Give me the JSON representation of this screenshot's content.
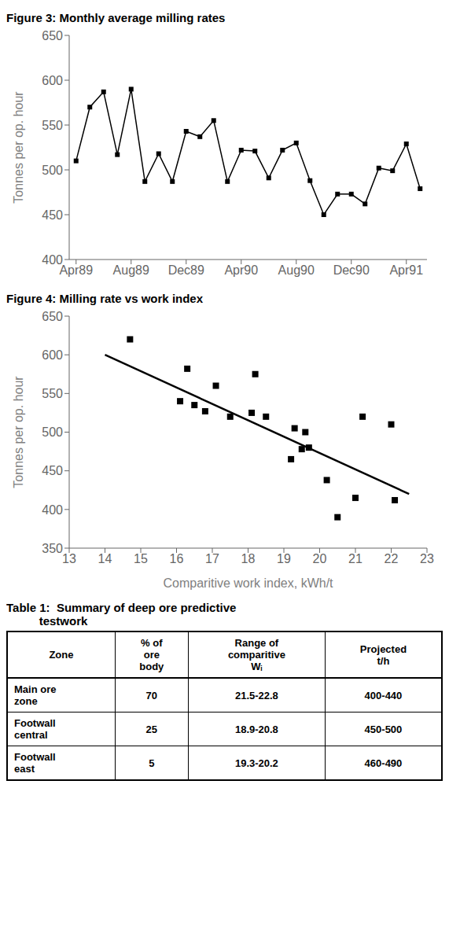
{
  "chart_data": [
    {
      "type": "line",
      "title": "Figure 3: Monthly average milling rates",
      "x": [
        0,
        1,
        2,
        3,
        4,
        5,
        6,
        7,
        8,
        9,
        10,
        11,
        12,
        13,
        14,
        15,
        16,
        17,
        18,
        19,
        20,
        21,
        22,
        23,
        24,
        25
      ],
      "values": [
        510,
        570,
        587,
        517,
        590,
        487,
        518,
        487,
        543,
        537,
        555,
        487,
        522,
        521,
        491,
        522,
        530,
        488,
        450,
        473,
        473,
        462,
        502,
        499,
        529,
        479
      ],
      "xlim": [
        -0.5,
        25.5
      ],
      "xticks": [
        {
          "value": 0,
          "label": "Apr89"
        },
        {
          "value": 4,
          "label": "Aug89"
        },
        {
          "value": 8,
          "label": "Dec89"
        },
        {
          "value": 12,
          "label": "Apr90"
        },
        {
          "value": 16,
          "label": "Aug90"
        },
        {
          "value": 20,
          "label": "Dec90"
        },
        {
          "value": 24,
          "label": "Apr91"
        }
      ],
      "ylim": [
        400,
        650
      ],
      "yticks": [
        400,
        450,
        500,
        550,
        600,
        650
      ],
      "ylabel": "Tonnes per op. hour",
      "color": "#000000",
      "marker": "square",
      "grid": false
    },
    {
      "type": "scatter",
      "title": "Figure 4: Milling rate vs work index",
      "series": [
        {
          "type": "scatter",
          "x": [
            14.7,
            16.1,
            16.3,
            16.5,
            16.8,
            17.1,
            17.5,
            18.1,
            18.2,
            18.5,
            19.2,
            19.3,
            19.5,
            19.6,
            19.7,
            20.2,
            20.5,
            21.0,
            21.2,
            22.0,
            22.1
          ],
          "values": [
            620,
            540,
            582,
            535,
            527,
            560,
            520,
            525,
            575,
            520,
            465,
            505,
            478,
            500,
            480,
            438,
            390,
            415,
            520,
            510,
            412
          ],
          "color": "#000000",
          "marker": "square"
        },
        {
          "type": "line",
          "x": [
            14.0,
            22.5
          ],
          "values": [
            600,
            420
          ],
          "color": "#000000"
        }
      ],
      "xlim": [
        13,
        23
      ],
      "xticks": [
        13,
        14,
        15,
        16,
        17,
        18,
        19,
        20,
        21,
        22,
        23
      ],
      "ylim": [
        350,
        650
      ],
      "yticks": [
        350,
        400,
        450,
        500,
        550,
        600,
        650
      ],
      "xlabel": "Comparitive work index, kWh/t",
      "ylabel": "Tonnes per op. hour",
      "grid": false
    },
    {
      "type": "table",
      "title": "Table 1:  Summary of deep ore predictive\n          testwork",
      "columns": [
        "Zone",
        "% of\nore\nbody",
        "Range of\ncomparitive\nWᵢ",
        "Projected\nt/h"
      ],
      "rows": [
        [
          "Main ore\nzone",
          "70",
          "21.5-22.8",
          "400-440"
        ],
        [
          "Footwall\ncentral",
          "25",
          "18.9-20.8",
          "450-500"
        ],
        [
          "Footwall\neast",
          "5",
          "19.3-20.2",
          "460-490"
        ]
      ]
    }
  ]
}
